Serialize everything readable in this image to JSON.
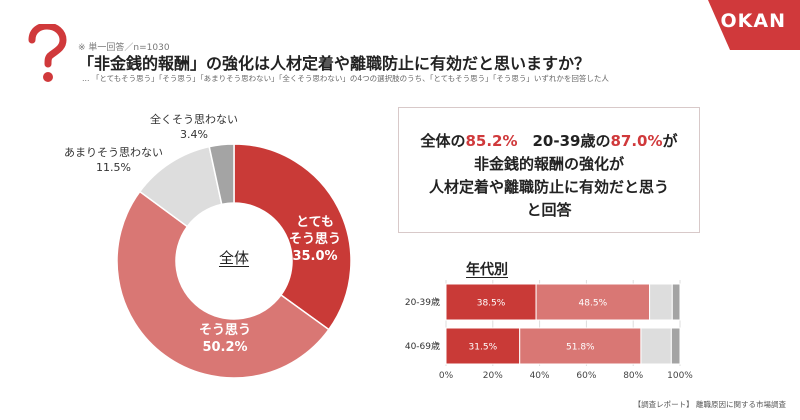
{
  "brand": {
    "logo": "OKAN",
    "accent": "#d0393b"
  },
  "header": {
    "note": "※ 単一回答／n=1030",
    "headline": "「非金銭的報酬」の強化は人材定着や離職防止に有効だと思いますか？",
    "subnote": "… 「とてもそう思う」「そう思う」「あまりそう思わない」「全くそう思わない」の4つの選択肢のうち、「とてもそう思う」「そう思う」いずれかを回答した人"
  },
  "callout": {
    "line1_a": "全体の",
    "line1_b": "85.2%",
    "line1_c": "　20-39歳の",
    "line1_d": "87.0%",
    "line1_e": "が",
    "line2": "非金銭的報酬の強化が",
    "line3": "人材定着や離職防止に有効だと思う",
    "line4": "と回答"
  },
  "footer": "【調査レポート】 離職原因に関する市場調査",
  "chart_data": [
    {
      "type": "pie",
      "title": "全体",
      "slices": [
        {
          "label_line1": "とても",
          "label_line2": "そう思う",
          "value": 35.0,
          "value_text": "35.0%",
          "color": "#c93a37"
        },
        {
          "label_line1": "そう思う",
          "label_line2": "",
          "value": 50.2,
          "value_text": "50.2%",
          "color": "#d97774"
        },
        {
          "label_line1": "あまりそう思わない",
          "label_line2": "",
          "value": 11.5,
          "value_text": "11.5%",
          "color": "#dddddd"
        },
        {
          "label_line1": "全くそう思わない",
          "label_line2": "",
          "value": 3.4,
          "value_text": "3.4%",
          "color": "#a4a4a4"
        }
      ]
    },
    {
      "type": "bar",
      "orientation": "horizontal-stacked",
      "title": "年代別",
      "categories": [
        "20-39歳",
        "40-69歳"
      ],
      "series": [
        {
          "values": [
            38.5,
            31.5
          ],
          "labels": [
            "38.5%",
            "31.5%"
          ],
          "color": "#c93a37"
        },
        {
          "values": [
            48.5,
            51.8
          ],
          "labels": [
            "48.5%",
            "51.8%"
          ],
          "color": "#d97774"
        },
        {
          "values": [
            9.7,
            13.0
          ],
          "labels": [
            "",
            ""
          ],
          "color": "#dddddd"
        },
        {
          "values": [
            3.3,
            3.7
          ],
          "labels": [
            "",
            ""
          ],
          "color": "#a4a4a4"
        }
      ],
      "xlim": [
        0,
        100
      ],
      "xticks": [
        "0%",
        "20%",
        "40%",
        "60%",
        "80%",
        "100%"
      ]
    }
  ]
}
